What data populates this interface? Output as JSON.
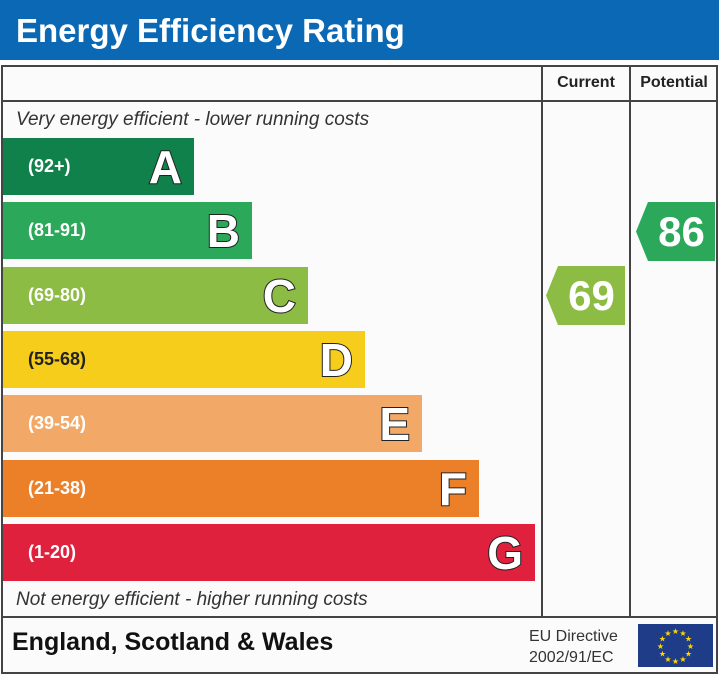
{
  "title": "Energy Efficiency Rating",
  "columns": {
    "current": "Current",
    "potential": "Potential"
  },
  "top_note": "Very energy efficient - lower running costs",
  "bottom_note": "Not energy efficient - higher running costs",
  "footer": {
    "country": "England, Scotland & Wales",
    "directive_line1": "EU Directive",
    "directive_line2": "2002/91/EC",
    "flag": "eu-flag-icon"
  },
  "chart_data": {
    "type": "bar",
    "bands": [
      {
        "letter": "A",
        "range": "(92+)",
        "color": "#10814a"
      },
      {
        "letter": "B",
        "range": "(81-91)",
        "color": "#2ba85a"
      },
      {
        "letter": "C",
        "range": "(69-80)",
        "color": "#8cbc43"
      },
      {
        "letter": "D",
        "range": "(55-68)",
        "color": "#f6cd1a"
      },
      {
        "letter": "E",
        "range": "(39-54)",
        "color": "#f2a968"
      },
      {
        "letter": "F",
        "range": "(21-38)",
        "color": "#ec8029"
      },
      {
        "letter": "G",
        "range": "(1-20)",
        "color": "#e0213e"
      }
    ],
    "current": {
      "value": "69",
      "band": "C",
      "color": "#8cbc43"
    },
    "potential": {
      "value": "86",
      "band": "B",
      "color": "#2ba85a"
    }
  }
}
